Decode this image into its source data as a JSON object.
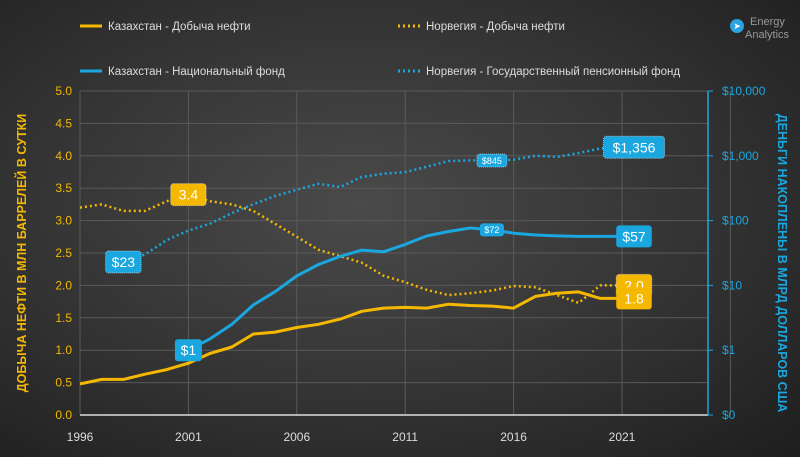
{
  "brand": {
    "line1": "Energy",
    "line2": "Analytics",
    "icon": "telegram-icon",
    "color": "#2aa3e0"
  },
  "chart_data": {
    "type": "line",
    "title": "",
    "x": [
      1996,
      1997,
      1998,
      1999,
      2000,
      2001,
      2002,
      2003,
      2004,
      2005,
      2006,
      2007,
      2008,
      2009,
      2010,
      2011,
      2012,
      2013,
      2014,
      2015,
      2016,
      2017,
      2018,
      2019,
      2020,
      2021
    ],
    "xticks": [
      "1996",
      "2001",
      "2006",
      "2011",
      "2016",
      "2021"
    ],
    "xtick_values": [
      1996,
      2001,
      2006,
      2011,
      2016,
      2021
    ],
    "xlim": [
      1996,
      2025
    ],
    "ylabel": "ДОБЫЧА НЕФТИ В МЛН БАРРЕЛЕЙ В СУТКИ",
    "ylabel_right": "ДЕНЬГИ НАКОПЛЕНЫ В МЛРД ДОЛЛАРОВ США",
    "ylim": [
      0,
      5
    ],
    "yticks": [
      "0.0",
      "0.5",
      "1.0",
      "1.5",
      "2.0",
      "2.5",
      "3.0",
      "3.5",
      "4.0",
      "4.5",
      "5.0"
    ],
    "ytick_values": [
      0,
      0.5,
      1,
      1.5,
      2,
      2.5,
      3,
      3.5,
      4,
      4.5,
      5
    ],
    "ylim_right_log": [
      0.1,
      10000
    ],
    "yticks_right": [
      "$0",
      "$1",
      "$10",
      "$100",
      "$1,000",
      "$10,000"
    ],
    "ytick_right_values": [
      0.1,
      1,
      10,
      100,
      1000,
      10000
    ],
    "grid": true,
    "legend_position": "top",
    "series": [
      {
        "name": "Казахстан - Добыча нефти",
        "axis": "left",
        "style": "solid",
        "color": "#f5b800",
        "values": [
          0.48,
          0.55,
          0.55,
          0.63,
          0.7,
          0.8,
          0.95,
          1.05,
          1.25,
          1.28,
          1.35,
          1.4,
          1.48,
          1.6,
          1.65,
          1.66,
          1.65,
          1.71,
          1.69,
          1.68,
          1.65,
          1.83,
          1.88,
          1.9,
          1.8,
          1.8
        ]
      },
      {
        "name": "Норвегия - Добыча нефти",
        "axis": "left",
        "style": "dotted",
        "color": "#f5b800",
        "values": [
          3.2,
          3.25,
          3.15,
          3.15,
          3.3,
          3.4,
          3.3,
          3.25,
          3.15,
          2.95,
          2.75,
          2.55,
          2.45,
          2.35,
          2.15,
          2.05,
          1.93,
          1.85,
          1.88,
          1.92,
          1.99,
          1.97,
          1.85,
          1.73,
          2.0,
          2.0
        ]
      },
      {
        "name": "Казахстан - Национальный фонд",
        "axis": "right",
        "style": "solid",
        "color": "#1aa7e0",
        "values": [
          null,
          null,
          null,
          null,
          null,
          1,
          1.5,
          2.5,
          5,
          8,
          14,
          21,
          28,
          35,
          33,
          43,
          58,
          68,
          77,
          72,
          64,
          60,
          58,
          57,
          57,
          57
        ]
      },
      {
        "name": "Норвегия - Государственный пенсионный фонд",
        "axis": "right",
        "style": "dotted",
        "color": "#1aa7e0",
        "values": [
          null,
          null,
          23,
          30,
          50,
          70,
          90,
          130,
          180,
          240,
          300,
          370,
          330,
          470,
          530,
          560,
          680,
          830,
          850,
          845,
          870,
          1000,
          960,
          1100,
          1300,
          1356
        ]
      }
    ],
    "annotations": [
      {
        "text": "$23",
        "series": 3,
        "x": 1998,
        "size": "big"
      },
      {
        "text": "$1",
        "series": 2,
        "x": 2001,
        "size": "big"
      },
      {
        "text": "3.4",
        "series": 1,
        "x": 2001,
        "size": "big"
      },
      {
        "text": "$845",
        "series": 3,
        "x": 2015,
        "size": "small"
      },
      {
        "text": "$72",
        "series": 2,
        "x": 2015,
        "size": "small"
      },
      {
        "text": "$1,356",
        "series": 3,
        "x": 2021,
        "size": "big"
      },
      {
        "text": "$57",
        "series": 2,
        "x": 2021,
        "size": "big"
      },
      {
        "text": "2.0",
        "series": 1,
        "x": 2021,
        "size": "big"
      },
      {
        "text": "1.8",
        "series": 0,
        "x": 2021,
        "size": "big"
      }
    ]
  }
}
